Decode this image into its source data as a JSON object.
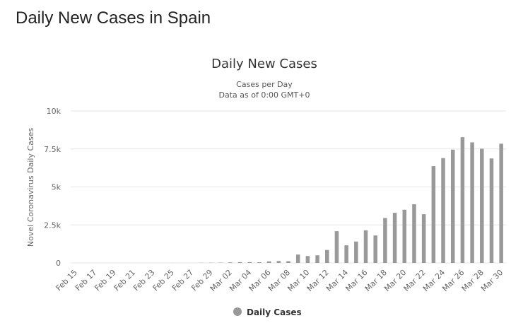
{
  "page": {
    "title": "Daily New Cases in Spain"
  },
  "chart_data": {
    "type": "bar",
    "title": "Daily New Cases",
    "subtitle_lines": [
      "Cases per Day",
      "Data as of 0:00 GMT+0"
    ],
    "ylabel": "Novel Coronavirus Daily Cases",
    "xlabel": "",
    "ylim": [
      0,
      10000
    ],
    "y_ticks": [
      0,
      2500,
      5000,
      7500,
      10000
    ],
    "y_tick_labels": [
      "0",
      "2.5k",
      "5k",
      "7.5k",
      "10k"
    ],
    "grid": true,
    "legend": {
      "position": "bottom-center",
      "label": "Daily Cases",
      "color": "#999999"
    },
    "categories": [
      "Feb 15",
      "Feb 16",
      "Feb 17",
      "Feb 18",
      "Feb 19",
      "Feb 20",
      "Feb 21",
      "Feb 22",
      "Feb 23",
      "Feb 24",
      "Feb 25",
      "Feb 26",
      "Feb 27",
      "Feb 28",
      "Feb 29",
      "Mar 01",
      "Mar 02",
      "Mar 03",
      "Mar 04",
      "Mar 05",
      "Mar 06",
      "Mar 07",
      "Mar 08",
      "Mar 09",
      "Mar 10",
      "Mar 11",
      "Mar 12",
      "Mar 13",
      "Mar 14",
      "Mar 15",
      "Mar 16",
      "Mar 17",
      "Mar 18",
      "Mar 19",
      "Mar 20",
      "Mar 21",
      "Mar 22",
      "Mar 23",
      "Mar 24",
      "Mar 25",
      "Mar 26",
      "Mar 27",
      "Mar 28",
      "Mar 29",
      "Mar 30"
    ],
    "x_tick_labels": [
      "Feb 15",
      "Feb 17",
      "Feb 19",
      "Feb 21",
      "Feb 23",
      "Feb 25",
      "Feb 27",
      "Feb 29",
      "Mar 02",
      "Mar 04",
      "Mar 06",
      "Mar 08",
      "Mar 10",
      "Mar 12",
      "Mar 14",
      "Mar 16",
      "Mar 18",
      "Mar 20",
      "Mar 22",
      "Mar 24",
      "Mar 26",
      "Mar 28",
      "Mar 30"
    ],
    "series": [
      {
        "name": "Daily Cases",
        "color": "#999999",
        "values": [
          0,
          0,
          0,
          0,
          0,
          0,
          0,
          0,
          0,
          2,
          4,
          2,
          0,
          9,
          13,
          15,
          36,
          52,
          55,
          43,
          101,
          125,
          113,
          550,
          453,
          500,
          852,
          2086,
          1159,
          1407,
          2144,
          1806,
          2955,
          3298,
          3500,
          3864,
          3203,
          6368,
          6900,
          7455,
          8271,
          7933,
          7516,
          6875,
          7846
        ]
      }
    ]
  }
}
